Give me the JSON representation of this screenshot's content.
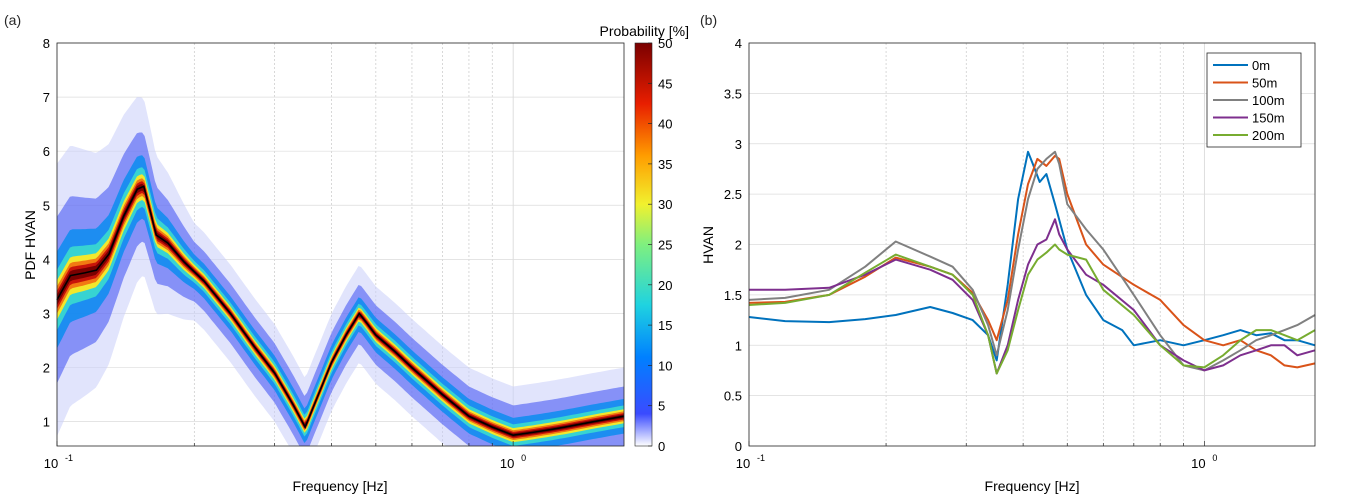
{
  "panels": {
    "a": {
      "tag": "(a)"
    },
    "b": {
      "tag": "(b)"
    }
  },
  "chart_data": [
    {
      "type": "heatmap",
      "panel": "(a)",
      "xlabel": "Frequency [Hz]",
      "ylabel": "PDF HVAN",
      "xscale": "log",
      "xlim": [
        0.1,
        1.75
      ],
      "ylim": [
        0.55,
        8
      ],
      "xticks": [
        {
          "v": 0.1,
          "base": "10",
          "exp": "-1"
        },
        {
          "v": 1,
          "base": "10",
          "exp": "0"
        }
      ],
      "yticks": [
        1,
        2,
        3,
        4,
        5,
        6,
        7,
        8
      ],
      "grid": true,
      "colorbar": {
        "label": "Probability [%]",
        "range": [
          0,
          50
        ],
        "ticks": [
          0,
          5,
          10,
          15,
          20,
          25,
          30,
          35,
          40,
          45,
          50
        ]
      },
      "median_curve": {
        "color": "#000000",
        "x": [
          0.1,
          0.107,
          0.115,
          0.122,
          0.13,
          0.14,
          0.15,
          0.155,
          0.16,
          0.165,
          0.175,
          0.19,
          0.21,
          0.24,
          0.27,
          0.3,
          0.33,
          0.35,
          0.37,
          0.4,
          0.43,
          0.46,
          0.48,
          0.5,
          0.55,
          0.6,
          0.7,
          0.8,
          0.9,
          1.0,
          1.1,
          1.2,
          1.3,
          1.5,
          1.75
        ],
        "y": [
          3.25,
          3.7,
          3.75,
          3.8,
          4.1,
          4.8,
          5.3,
          5.35,
          4.9,
          4.45,
          4.3,
          3.95,
          3.6,
          3.0,
          2.4,
          1.9,
          1.3,
          0.9,
          1.4,
          2.1,
          2.6,
          3.0,
          2.8,
          2.6,
          2.3,
          2.0,
          1.5,
          1.1,
          0.9,
          0.75,
          0.8,
          0.85,
          0.9,
          1.0,
          1.1
        ]
      }
    },
    {
      "type": "line",
      "panel": "(b)",
      "xlabel": "Frequency [Hz]",
      "ylabel": "HVAN",
      "xscale": "log",
      "xlim": [
        0.1,
        1.75
      ],
      "ylim": [
        0,
        4
      ],
      "xticks": [
        {
          "v": 0.1,
          "base": "10",
          "exp": "-1"
        },
        {
          "v": 1,
          "base": "10",
          "exp": "0"
        }
      ],
      "yticks": [
        0,
        0.5,
        1,
        1.5,
        2,
        2.5,
        3,
        3.5,
        4
      ],
      "grid": true,
      "legend": "top-right",
      "series": [
        {
          "name": "0m",
          "color": "#0072BD",
          "x": [
            0.1,
            0.12,
            0.15,
            0.18,
            0.21,
            0.25,
            0.28,
            0.31,
            0.335,
            0.35,
            0.37,
            0.39,
            0.41,
            0.42,
            0.435,
            0.45,
            0.47,
            0.5,
            0.55,
            0.6,
            0.66,
            0.7,
            0.8,
            0.9,
            1.0,
            1.1,
            1.2,
            1.3,
            1.4,
            1.5,
            1.6,
            1.75
          ],
          "y": [
            1.28,
            1.24,
            1.23,
            1.26,
            1.3,
            1.38,
            1.32,
            1.25,
            1.1,
            0.85,
            1.6,
            2.45,
            2.92,
            2.8,
            2.62,
            2.7,
            2.4,
            1.95,
            1.5,
            1.25,
            1.15,
            1.0,
            1.05,
            1.0,
            1.05,
            1.1,
            1.15,
            1.1,
            1.12,
            1.05,
            1.05,
            1.0
          ]
        },
        {
          "name": "50m",
          "color": "#D95319",
          "x": [
            0.1,
            0.12,
            0.15,
            0.18,
            0.21,
            0.25,
            0.28,
            0.31,
            0.335,
            0.35,
            0.37,
            0.39,
            0.41,
            0.43,
            0.45,
            0.47,
            0.48,
            0.5,
            0.55,
            0.6,
            0.7,
            0.8,
            0.9,
            1.0,
            1.1,
            1.2,
            1.3,
            1.4,
            1.5,
            1.6,
            1.75
          ],
          "y": [
            1.42,
            1.43,
            1.5,
            1.68,
            1.87,
            1.78,
            1.7,
            1.52,
            1.25,
            1.05,
            1.45,
            2.1,
            2.6,
            2.85,
            2.78,
            2.88,
            2.85,
            2.5,
            2.0,
            1.8,
            1.6,
            1.45,
            1.2,
            1.05,
            1.0,
            1.05,
            0.95,
            0.9,
            0.8,
            0.78,
            0.82
          ]
        },
        {
          "name": "100m",
          "color": "#808080",
          "x": [
            0.1,
            0.12,
            0.15,
            0.18,
            0.21,
            0.25,
            0.28,
            0.31,
            0.335,
            0.35,
            0.37,
            0.39,
            0.41,
            0.43,
            0.45,
            0.47,
            0.48,
            0.5,
            0.55,
            0.6,
            0.7,
            0.8,
            0.9,
            1.0,
            1.1,
            1.2,
            1.3,
            1.4,
            1.5,
            1.6,
            1.75
          ],
          "y": [
            1.45,
            1.47,
            1.55,
            1.78,
            2.03,
            1.88,
            1.78,
            1.55,
            1.2,
            0.9,
            1.35,
            1.95,
            2.45,
            2.75,
            2.85,
            2.92,
            2.8,
            2.4,
            2.15,
            1.95,
            1.5,
            1.1,
            0.8,
            0.75,
            0.85,
            0.95,
            1.05,
            1.1,
            1.15,
            1.2,
            1.3
          ]
        },
        {
          "name": "150m",
          "color": "#7E2F8E",
          "x": [
            0.1,
            0.12,
            0.15,
            0.18,
            0.21,
            0.25,
            0.28,
            0.31,
            0.335,
            0.35,
            0.37,
            0.39,
            0.41,
            0.43,
            0.45,
            0.47,
            0.48,
            0.5,
            0.55,
            0.6,
            0.7,
            0.8,
            0.9,
            1.0,
            1.1,
            1.2,
            1.3,
            1.4,
            1.5,
            1.6,
            1.75
          ],
          "y": [
            1.55,
            1.55,
            1.57,
            1.7,
            1.85,
            1.75,
            1.65,
            1.45,
            1.1,
            0.72,
            1.0,
            1.45,
            1.8,
            2.0,
            2.05,
            2.25,
            2.1,
            1.95,
            1.7,
            1.6,
            1.35,
            1.0,
            0.85,
            0.75,
            0.8,
            0.9,
            0.95,
            1.0,
            1.0,
            0.9,
            0.95
          ]
        },
        {
          "name": "200m",
          "color": "#77AC30",
          "x": [
            0.1,
            0.12,
            0.15,
            0.18,
            0.21,
            0.25,
            0.28,
            0.31,
            0.335,
            0.35,
            0.37,
            0.39,
            0.41,
            0.43,
            0.45,
            0.47,
            0.48,
            0.5,
            0.55,
            0.6,
            0.7,
            0.8,
            0.9,
            1.0,
            1.1,
            1.2,
            1.3,
            1.4,
            1.5,
            1.6,
            1.75
          ],
          "y": [
            1.4,
            1.42,
            1.5,
            1.72,
            1.9,
            1.78,
            1.7,
            1.5,
            1.1,
            0.72,
            0.95,
            1.35,
            1.7,
            1.85,
            1.92,
            2.0,
            1.95,
            1.9,
            1.85,
            1.55,
            1.3,
            1.0,
            0.8,
            0.78,
            0.9,
            1.05,
            1.15,
            1.15,
            1.1,
            1.05,
            1.15
          ]
        }
      ]
    }
  ]
}
